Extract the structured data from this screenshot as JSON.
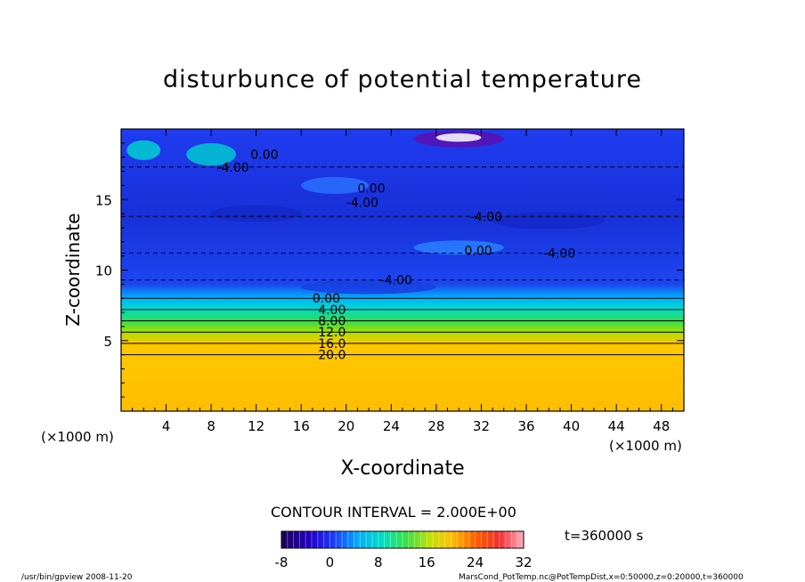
{
  "chart_data": {
    "type": "heatmap",
    "title": "disturbunce of potential temperature",
    "xlabel": "X-coordinate",
    "ylabel": "Z-coordinate",
    "x_unit": "(×1000 m)",
    "y_unit": "(×1000 m)",
    "xlim": [
      0,
      50
    ],
    "ylim": [
      0,
      20
    ],
    "x_ticks": [
      4,
      8,
      12,
      16,
      20,
      24,
      28,
      32,
      36,
      40,
      44,
      48
    ],
    "y_ticks": [
      5,
      10,
      15
    ],
    "contour_interval_text": "CONTOUR INTERVAL = 2.000E+00",
    "contour_labels": [
      {
        "text": "0.00",
        "x": 11.5,
        "z": 18.2
      },
      {
        "text": "-4.00",
        "x": 8.5,
        "z": 17.3
      },
      {
        "text": "0.00",
        "x": 21,
        "z": 15.8
      },
      {
        "text": "-4.00",
        "x": 20,
        "z": 14.8
      },
      {
        "text": "-4.00",
        "x": 31,
        "z": 13.8
      },
      {
        "text": "0.00",
        "x": 30.5,
        "z": 11.4
      },
      {
        "text": "-4.00",
        "x": 37.5,
        "z": 11.2
      },
      {
        "text": "-4.00",
        "x": 23,
        "z": 9.3
      },
      {
        "text": "0.00",
        "x": 17,
        "z": 8.0
      },
      {
        "text": "4.00",
        "x": 17.5,
        "z": 7.2
      },
      {
        "text": "8.00",
        "x": 17.5,
        "z": 6.4
      },
      {
        "text": "12.0",
        "x": 17.5,
        "z": 5.6
      },
      {
        "text": "16.0",
        "x": 17.5,
        "z": 4.8
      },
      {
        "text": "20.0",
        "x": 17.5,
        "z": 4.0
      }
    ],
    "colorbar": {
      "min": -8,
      "max": 32,
      "tick_labels": [
        "-8",
        "0",
        "8",
        "16",
        "24",
        "32"
      ]
    },
    "annotation_time": "t=360000 s"
  },
  "footer": {
    "left": "/usr/bin/gpview   2008-11-20",
    "right": "MarsCond_PotTemp.nc@PotTempDist,x=0:50000,z=0:20000,t=360000"
  }
}
